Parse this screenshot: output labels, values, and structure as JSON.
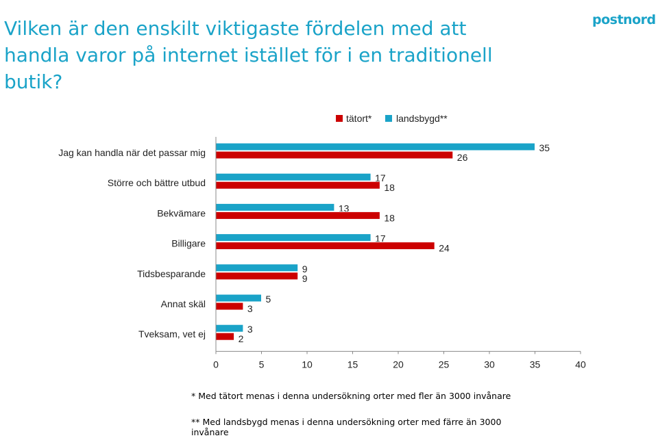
{
  "title": "Vilken är den enskilt viktigaste fördelen med att handla varor på internet istället för i en traditionell butik?",
  "logo": "postnord",
  "colors": {
    "tatort": "#cc0000",
    "landsbygd": "#1aa3c8",
    "title": "#1aa3c8"
  },
  "footnotes": [
    "* Med tätort menas i denna undersökning orter med fler än 3000 invånare",
    "** Med landsbygd menas i denna undersökning orter med färre än 3000 invånare"
  ],
  "chart_data": {
    "type": "bar",
    "orientation": "horizontal",
    "title": "",
    "xlabel": "",
    "ylabel": "",
    "xlim": [
      0,
      40
    ],
    "xticks": [
      0,
      5,
      10,
      15,
      20,
      25,
      30,
      35,
      40
    ],
    "grid": false,
    "legend_position": "top",
    "categories": [
      "Jag kan handla när det passar mig",
      "Större och bättre utbud",
      "Bekvämare",
      "Billigare",
      "Tidsbesparande",
      "Annat skäl",
      "Tveksam, vet ej"
    ],
    "series": [
      {
        "name": "tätort*",
        "values": [
          26,
          18,
          18,
          24,
          9,
          3,
          2
        ]
      },
      {
        "name": "landsbygd**",
        "values": [
          35,
          17,
          13,
          17,
          9,
          5,
          3
        ]
      }
    ]
  }
}
